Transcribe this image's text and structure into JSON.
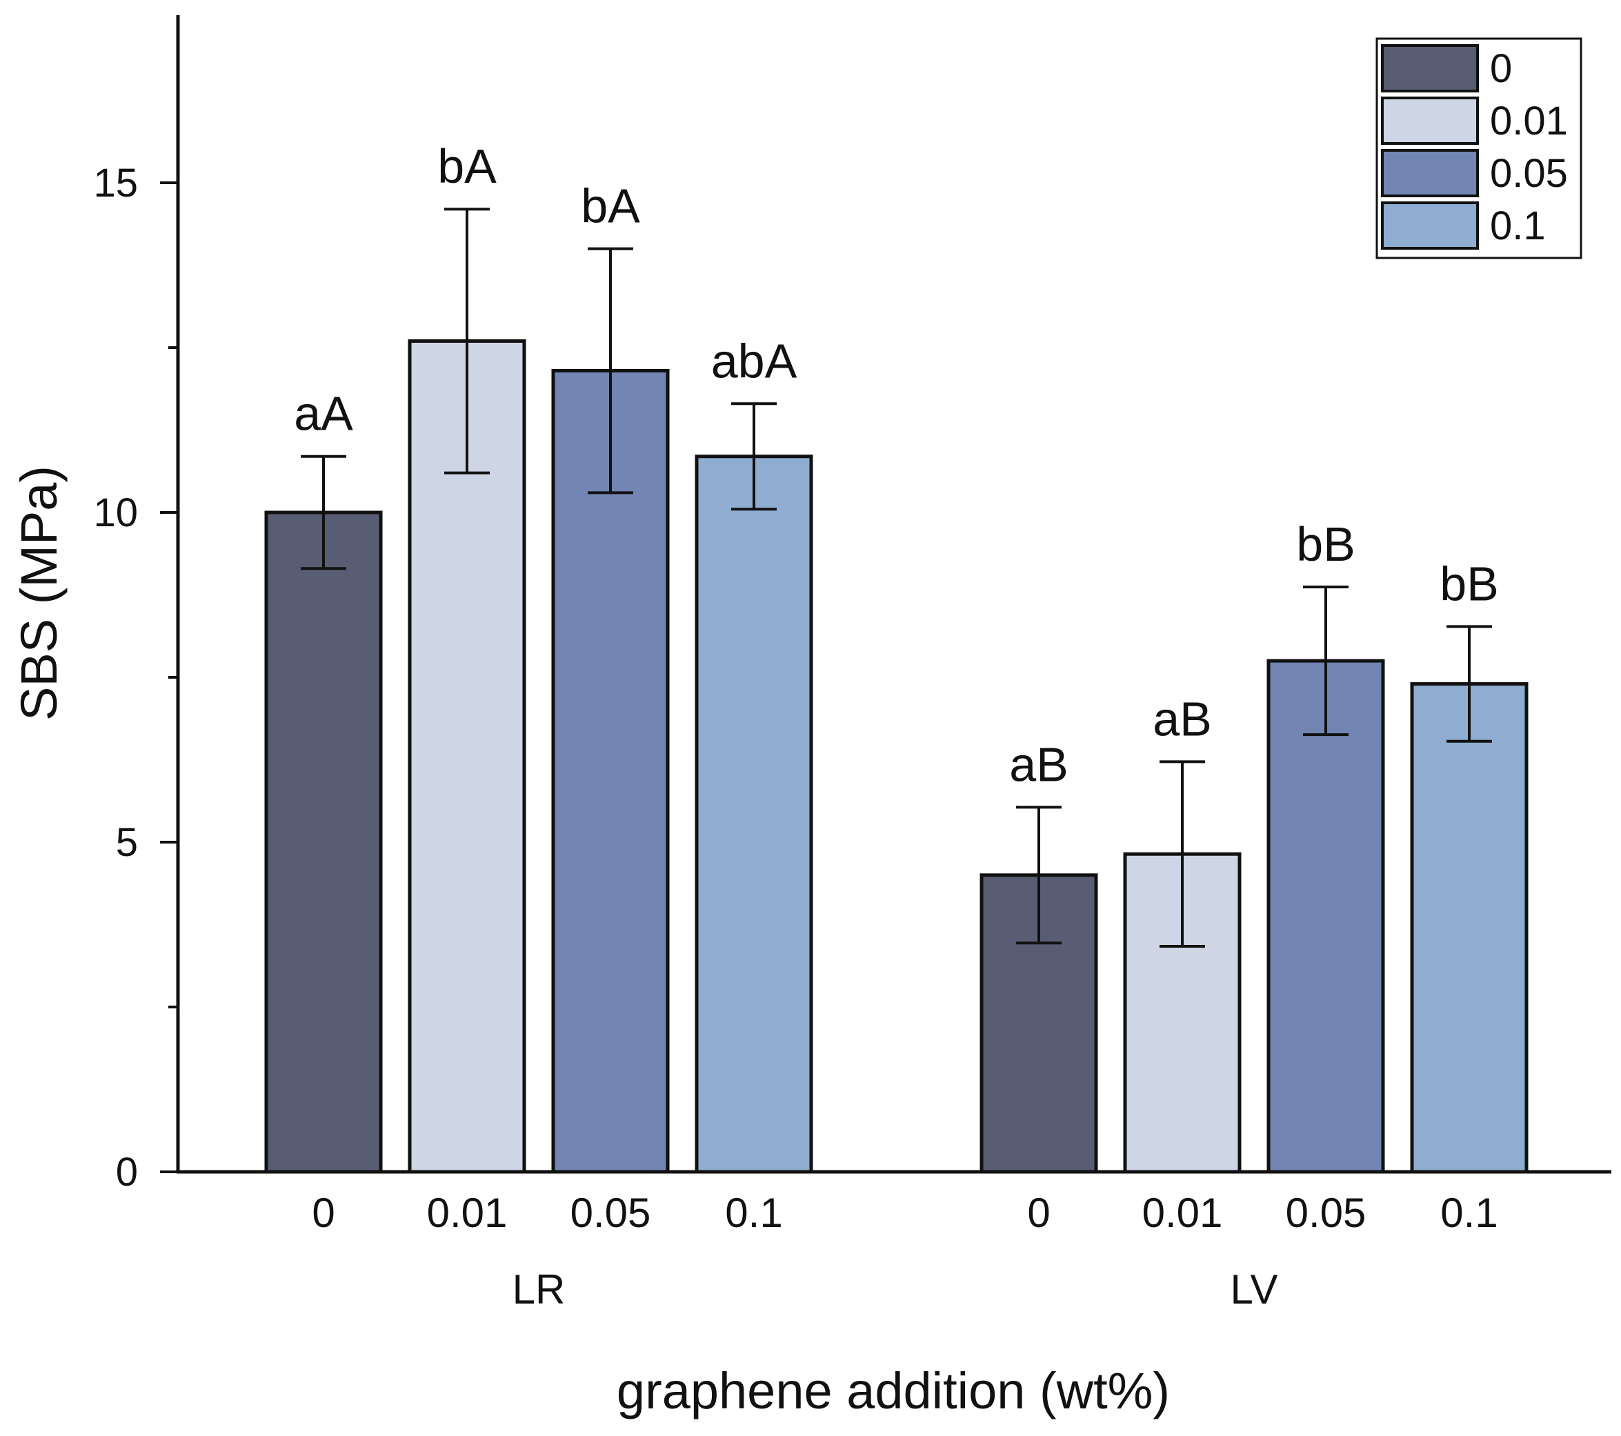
{
  "chart_data": {
    "type": "bar",
    "title": "",
    "xlabel": "graphene addition (wt%)",
    "ylabel": "SBS (MPa)",
    "ylim": [
      0,
      17.5
    ],
    "yticks": [
      0,
      5,
      10,
      15
    ],
    "ytick_labels": [
      "0",
      "5",
      "10",
      "15"
    ],
    "minor_yticks": [
      2.5,
      7.5,
      12.5
    ],
    "legend_position": "top-right",
    "groups": [
      {
        "name": "LR",
        "categories": [
          "0",
          "0.01",
          "0.05",
          "0.1"
        ],
        "values": [
          10.0,
          12.6,
          12.15,
          10.85
        ],
        "errors": [
          0.85,
          2.0,
          1.85,
          0.8
        ],
        "significance": [
          "aA",
          "bA",
          "bA",
          "abA"
        ]
      },
      {
        "name": "LV",
        "categories": [
          "0",
          "0.01",
          "0.05",
          "0.1"
        ],
        "values": [
          4.5,
          4.82,
          7.75,
          7.4
        ],
        "errors": [
          1.03,
          1.4,
          1.12,
          0.87
        ],
        "significance": [
          "aB",
          "aB",
          "bB",
          "bB"
        ]
      }
    ],
    "series": [
      {
        "name": "0",
        "color": "#585d73"
      },
      {
        "name": "0.01",
        "color": "#ced5e4"
      },
      {
        "name": "0.05",
        "color": "#7285b3"
      },
      {
        "name": "0.1",
        "color": "#8fadd0"
      }
    ]
  }
}
